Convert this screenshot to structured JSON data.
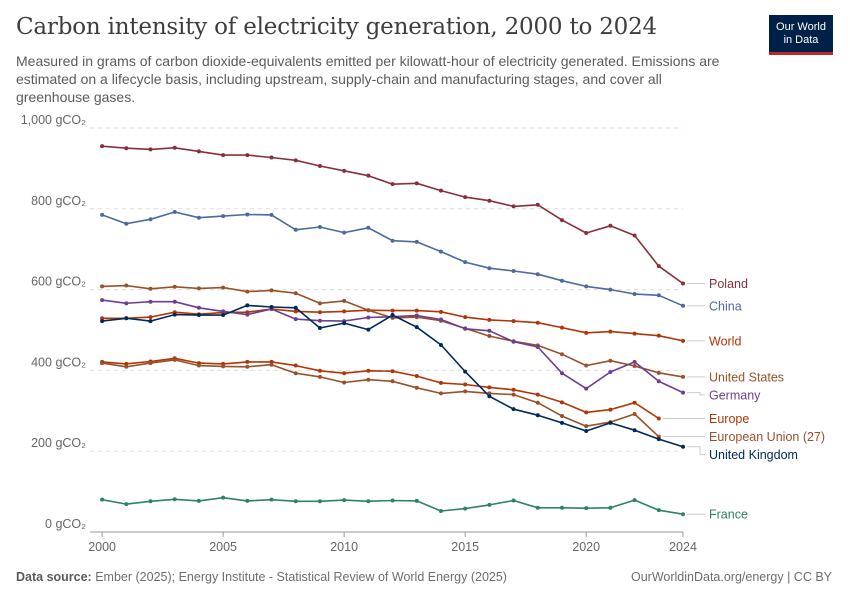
{
  "header": {
    "title": "Carbon intensity of electricity generation, 2000 to 2024",
    "subtitle": "Measured in grams of carbon dioxide-equivalents emitted per kilowatt-hour of electricity generated. Emissions are estimated on a lifecycle basis, including upstream, supply-chain and manufacturing stages, and cover all greenhouse gases.",
    "logo": "Our World in Data"
  },
  "footer": {
    "source_label": "Data source:",
    "source_text": "Ember (2025); Energy Institute - Statistical Review of World Energy (2025)",
    "right": "OurWorldinData.org/energy | CC BY"
  },
  "chart_data": {
    "type": "line",
    "x": [
      2000,
      2001,
      2002,
      2003,
      2004,
      2005,
      2006,
      2007,
      2008,
      2009,
      2010,
      2011,
      2012,
      2013,
      2014,
      2015,
      2016,
      2017,
      2018,
      2019,
      2020,
      2021,
      2022,
      2023,
      2024
    ],
    "xlim": [
      1999.5,
      2024
    ],
    "ylim": [
      0,
      1000
    ],
    "x_ticks": [
      2000,
      2005,
      2010,
      2015,
      2020,
      2024
    ],
    "y_ticks": [
      {
        "value": 0,
        "label": "0 gCO₂"
      },
      {
        "value": 200,
        "label": "200 gCO₂"
      },
      {
        "value": 400,
        "label": "400 gCO₂"
      },
      {
        "value": 600,
        "label": "600 gCO₂"
      },
      {
        "value": 800,
        "label": "800 gCO₂"
      },
      {
        "value": 1000,
        "label": "1,000 gCO₂"
      }
    ],
    "grid": "horizontal dashed",
    "legend": "right, labels at line ends",
    "series": [
      {
        "name": "Poland",
        "color": "#883039",
        "label_value": 615,
        "values": [
          955,
          950,
          947,
          951,
          942,
          933,
          933,
          927,
          920,
          906,
          894,
          882,
          861,
          863,
          845,
          829,
          820,
          806,
          810,
          772,
          740,
          758,
          734,
          658,
          615
        ]
      },
      {
        "name": "China",
        "color": "#4c6a9c",
        "label_value": 560,
        "values": [
          785,
          763,
          774,
          792,
          778,
          782,
          786,
          785,
          748,
          755,
          741,
          753,
          721,
          718,
          694,
          668,
          653,
          646,
          638,
          622,
          608,
          600,
          589,
          586,
          560
        ]
      },
      {
        "name": "World",
        "color": "#b13507",
        "label_value": 473,
        "values": [
          529,
          529,
          532,
          544,
          539,
          543,
          544,
          552,
          546,
          544,
          546,
          549,
          548,
          548,
          545,
          532,
          525,
          522,
          518,
          506,
          493,
          496,
          491,
          486,
          473
        ]
      },
      {
        "name": "United States",
        "color": "#9a5129",
        "label_value": 384,
        "values": [
          608,
          610,
          602,
          607,
          603,
          605,
          595,
          598,
          591,
          566,
          572,
          549,
          530,
          532,
          523,
          504,
          485,
          472,
          462,
          440,
          412,
          424,
          411,
          394,
          384
        ]
      },
      {
        "name": "Germany",
        "color": "#6d3e91",
        "label_value": 345,
        "values": [
          574,
          566,
          570,
          570,
          555,
          546,
          538,
          552,
          527,
          523,
          522,
          531,
          533,
          536,
          526,
          503,
          498,
          471,
          458,
          393,
          355,
          396,
          421,
          373,
          345
        ]
      },
      {
        "name": "Europe",
        "color": "#b13507",
        "label_value": 281,
        "values": [
          421,
          416,
          422,
          430,
          418,
          416,
          421,
          421,
          412,
          399,
          393,
          399,
          398,
          386,
          369,
          365,
          358,
          352,
          340,
          321,
          296,
          303,
          320,
          281,
          null
        ]
      },
      {
        "name": "European Union (27)",
        "color": "#9a5129",
        "label_value": 236,
        "values": [
          418,
          409,
          418,
          426,
          412,
          410,
          409,
          414,
          393,
          384,
          370,
          377,
          373,
          357,
          343,
          348,
          343,
          340,
          320,
          287,
          262,
          272,
          292,
          236,
          null
        ]
      },
      {
        "name": "United Kingdom",
        "color": "#00295b",
        "label_value": 211,
        "values": [
          522,
          529,
          522,
          538,
          537,
          537,
          561,
          557,
          555,
          505,
          517,
          501,
          537,
          507,
          463,
          397,
          336,
          304,
          289,
          270,
          250,
          270,
          252,
          230,
          211
        ]
      },
      {
        "name": "France",
        "color": "#2c8465",
        "label_value": 44,
        "values": [
          80,
          69,
          76,
          81,
          77,
          85,
          77,
          80,
          76,
          76,
          79,
          76,
          78,
          77,
          52,
          58,
          67,
          78,
          60,
          60,
          59,
          60,
          79,
          54,
          44
        ]
      }
    ]
  }
}
